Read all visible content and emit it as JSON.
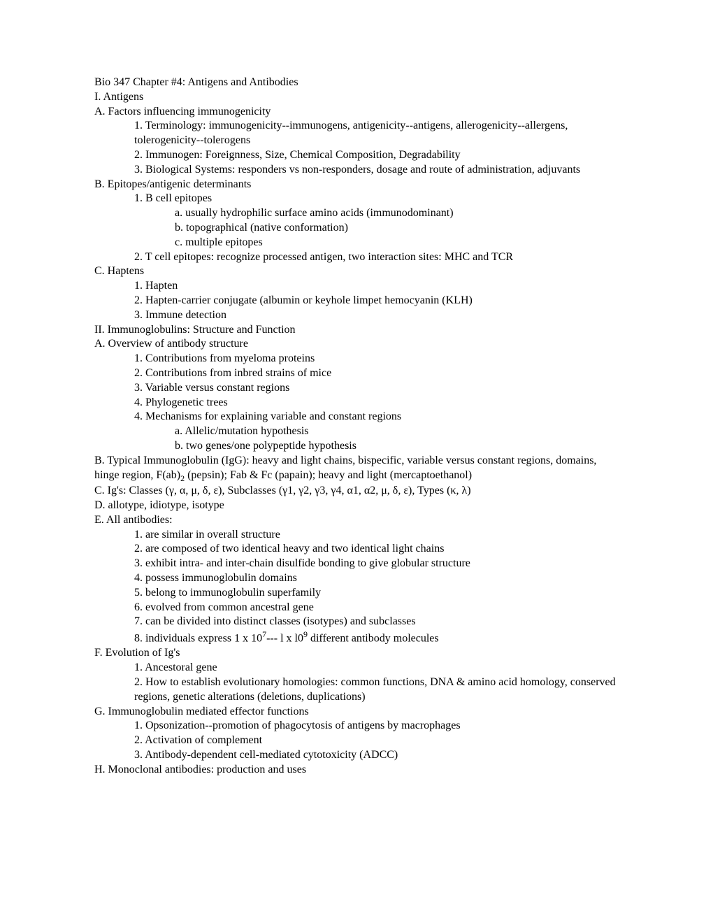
{
  "lines": [
    {
      "indent": 0,
      "text": "Bio 347 Chapter #4:   Antigens and Antibodies"
    },
    {
      "indent": 0,
      "text": "I.  Antigens"
    },
    {
      "indent": 0,
      "text": "A.  Factors influencing immunogenicity"
    },
    {
      "indent": 1,
      "text": "1.  Terminology:  immunogenicity--immunogens, antigenicity--antigens, allerogenicity--allergens, tolerogenicity--tolerogens"
    },
    {
      "indent": 1,
      "text": "2.  Immunogen:   Foreignness, Size, Chemical Composition, Degradability"
    },
    {
      "indent": 1,
      "text": "3.  Biological Systems:  responders vs non-responders, dosage and route of administration, adjuvants"
    },
    {
      "indent": 0,
      "text": "B.    Epitopes/antigenic determinants"
    },
    {
      "indent": 1,
      "text": "1.  B cell epitopes"
    },
    {
      "indent": 2,
      "text": "a.    usually hydrophilic surface amino acids (immunodominant)"
    },
    {
      "indent": 2,
      "text": "b.    topographical (native conformation)"
    },
    {
      "indent": 2,
      "text": "c.    multiple epitopes"
    },
    {
      "indent": 1,
      "text": "2.  T cell epitopes: recognize processed antigen,  two interaction sites:  MHC and TCR"
    },
    {
      "indent": 0,
      "text": "C.  Haptens"
    },
    {
      "indent": 1,
      "text": "1.  Hapten"
    },
    {
      "indent": 1,
      "text": "2.  Hapten-carrier conjugate (albumin or keyhole limpet hemocyanin (KLH)"
    },
    {
      "indent": 1,
      "text": "3.  Immune detection"
    },
    {
      "indent": 0,
      "text": "II.  Immunoglobulins:  Structure and Function"
    },
    {
      "indent": 0,
      "text": "A.  Overview of antibody structure"
    },
    {
      "indent": 1,
      "text": "1.  Contributions from myeloma proteins"
    },
    {
      "indent": 1,
      "text": "2.  Contributions from inbred strains of mice"
    },
    {
      "indent": 1,
      "text": "3.  Variable versus constant regions"
    },
    {
      "indent": 1,
      "text": "4.  Phylogenetic trees"
    },
    {
      "indent": 1,
      "text": "4.  Mechanisms for explaining variable and constant regions"
    },
    {
      "indent": 2,
      "text": "a.  Allelic/mutation hypothesis"
    },
    {
      "indent": 2,
      "text": "b.  two genes/one polypeptide hypothesis"
    },
    {
      "indent": 0,
      "html": "B.       Typical Immunoglobulin (IgG):   heavy and light chains, bispecific, variable versus constant regions, domains, hinge region,  F(ab)<sub>2</sub> (pepsin); Fab & Fc (papain); heavy and light (mercaptoethanol)"
    },
    {
      "indent": 0,
      "text": "C.  Ig's:  Classes  (γ, α, μ, δ, ε), Subclasses  (γ1, γ2, γ3, γ4, α1, α2, μ, δ, ε), Types (κ, λ)"
    },
    {
      "indent": 0,
      "text": "D.  allotype, idiotype, isotype"
    },
    {
      "indent": 0,
      "text": "E.  All antibodies:"
    },
    {
      "indent": 1,
      "text": "1.  are similar in overall structure"
    },
    {
      "indent": 1,
      "text": "2.  are composed of two identical heavy and two identical light chains"
    },
    {
      "indent": 1,
      "text": "3.  exhibit intra- and inter-chain disulfide bonding to give globular structure"
    },
    {
      "indent": 1,
      "text": "4.  possess immunoglobulin domains"
    },
    {
      "indent": 1,
      "text": "5.  belong to immunoglobulin superfamily"
    },
    {
      "indent": 1,
      "text": "6.  evolved from common ancestral gene"
    },
    {
      "indent": 1,
      "text": "7.  can be divided into distinct classes (isotypes) and subclasses"
    },
    {
      "indent": 1,
      "html": "8.  individuals express 1 x 10<sup>7</sup>--- l x l0<sup>9</sup> different antibody molecules"
    },
    {
      "indent": 0,
      "text": "F.  Evolution of Ig's"
    },
    {
      "indent": 1,
      "text": "1.  Ancestoral gene"
    },
    {
      "indent": 1,
      "text": "2.  How to establish evolutionary homologies:   common functions, DNA & amino acid homology, conserved regions, genetic alterations (deletions, duplications)"
    },
    {
      "indent": 0,
      "text": "G.  Immunoglobulin mediated effector functions"
    },
    {
      "indent": 1,
      "text": "1.  Opsonization--promotion of phagocytosis of antigens by macrophages"
    },
    {
      "indent": 1,
      "text": "2.  Activation of complement"
    },
    {
      "indent": 1,
      "text": "3.  Antibody-dependent cell-mediated cytotoxicity (ADCC)"
    },
    {
      "indent": 0,
      "text": "H.  Monoclonal antibodies:  production and uses"
    }
  ]
}
